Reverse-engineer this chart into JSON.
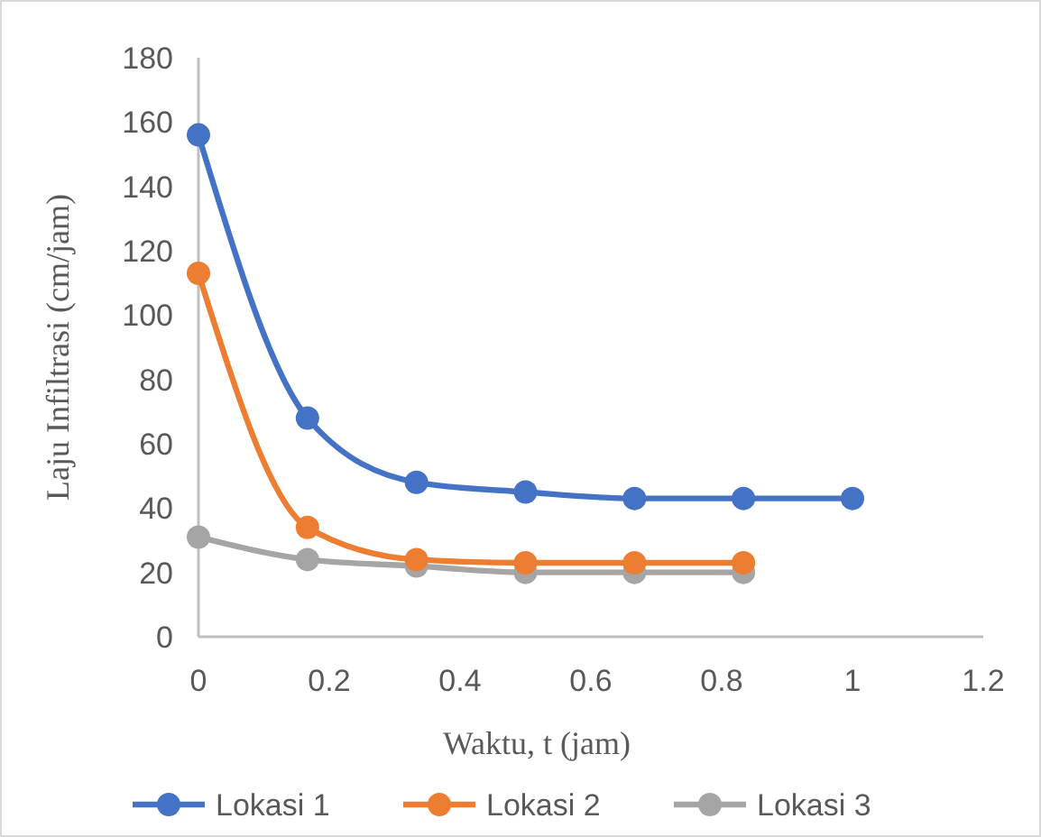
{
  "chart_data": {
    "type": "line",
    "xlabel": "Waktu, t (jam)",
    "ylabel": "Laju Infiltrasi (cm/jam)",
    "xlim": [
      0,
      1.2
    ],
    "xticks": [
      0,
      0.2,
      0.4,
      0.6,
      0.8,
      1,
      1.2
    ],
    "ylim": [
      0,
      180
    ],
    "yticks": [
      0,
      20,
      40,
      60,
      80,
      100,
      120,
      140,
      160,
      180
    ],
    "grid": false,
    "legend": "bottom",
    "marker": "circle",
    "line_style": "solid",
    "series": [
      {
        "name": "Lokasi 1",
        "color": "#4472c4",
        "x": [
          0,
          0.1667,
          0.3333,
          0.5,
          0.6667,
          0.8333,
          1
        ],
        "values": [
          156,
          68,
          48,
          45,
          43,
          43,
          43
        ]
      },
      {
        "name": "Lokasi 2",
        "color": "#ed7d31",
        "x": [
          0,
          0.1667,
          0.3333,
          0.5,
          0.6667,
          0.8333
        ],
        "values": [
          113,
          34,
          24,
          23,
          23,
          23
        ]
      },
      {
        "name": "Lokasi 3",
        "color": "#a5a5a5",
        "x": [
          0,
          0.1667,
          0.3333,
          0.5,
          0.6667,
          0.8333
        ],
        "values": [
          31,
          24,
          22,
          20,
          20,
          20
        ]
      }
    ]
  }
}
